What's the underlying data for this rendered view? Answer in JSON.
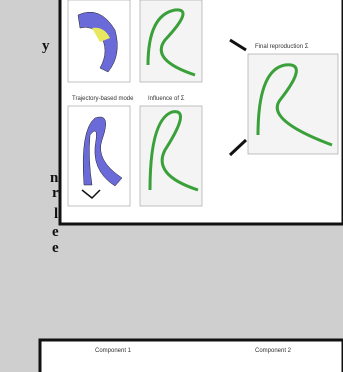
{
  "side_text": [
    "y",
    "n",
    "r",
    "l",
    "e",
    "e"
  ],
  "figure": {
    "panel_labels": [
      "Trajectory-based mode",
      "Influence of Σ",
      "Final reproduction Σ"
    ]
  },
  "bottom_figure": {
    "panel_labels": [
      "Component 1",
      "Component 2"
    ]
  }
}
